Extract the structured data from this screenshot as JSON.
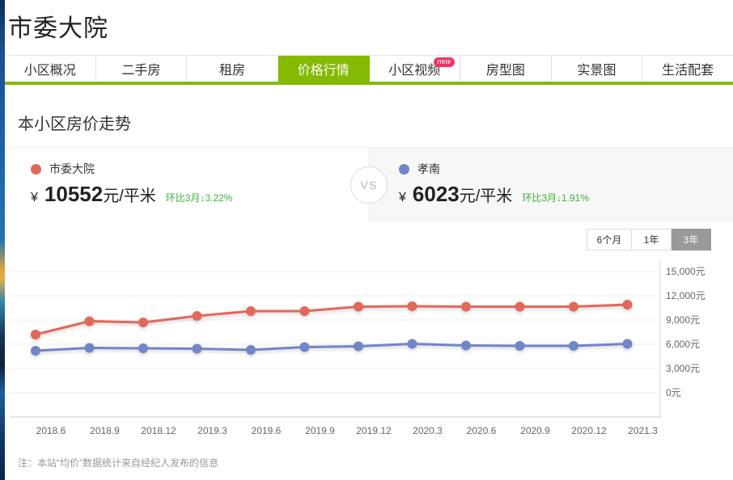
{
  "page": {
    "title": "市委大院"
  },
  "tabs": [
    {
      "label": "小区概况",
      "active": false
    },
    {
      "label": "二手房",
      "active": false
    },
    {
      "label": "租房",
      "active": false
    },
    {
      "label": "价格行情",
      "active": true
    },
    {
      "label": "小区视频",
      "active": false,
      "badge": "new"
    },
    {
      "label": "房型图",
      "active": false
    },
    {
      "label": "实景图",
      "active": false
    },
    {
      "label": "生活配套",
      "active": false
    }
  ],
  "section": {
    "title": "本小区房价走势"
  },
  "compare": {
    "vs_label": "VS",
    "left": {
      "name": "市委大院",
      "currency": "¥",
      "price": "10552",
      "unit": "元/平米",
      "mom": "环比3月↓3.22%",
      "color": "#e2695a"
    },
    "right": {
      "name": "孝南",
      "currency": "¥",
      "price": "6023",
      "unit": "元/平米",
      "mom": "环比3月↓1.91%",
      "color": "#7086c7"
    }
  },
  "range_buttons": [
    {
      "label": "6个月",
      "active": false
    },
    {
      "label": "1年",
      "active": false
    },
    {
      "label": "3年",
      "active": true
    }
  ],
  "chart_data": {
    "type": "line",
    "categories": [
      "2018.6",
      "2018.9",
      "2018.12",
      "2019.3",
      "2019.6",
      "2019.9",
      "2019.12",
      "2020.3",
      "2020.6",
      "2020.9",
      "2020.12",
      "2021.3"
    ],
    "series": [
      {
        "name": "市委大院",
        "color": "#e2695a",
        "values": [
          7200,
          8850,
          8700,
          9500,
          10100,
          10100,
          10650,
          10700,
          10650,
          10650,
          10650,
          10900
        ]
      },
      {
        "name": "孝南",
        "color": "#7086c7",
        "values": [
          5200,
          5550,
          5500,
          5450,
          5300,
          5650,
          5750,
          6050,
          5850,
          5800,
          5800,
          6050
        ]
      }
    ],
    "title": "",
    "xlabel": "",
    "ylabel": "",
    "ylim": [
      0,
      15000
    ],
    "ytick_interval": 3000,
    "ytick_labels": [
      "15,000元",
      "12,000元",
      "9,000元",
      "6,000元",
      "3,000元",
      "0元"
    ],
    "grid": true,
    "yaxis_position": "right",
    "legend_position": "none"
  },
  "note": "注：本站“均价”数据统计来自经纪人发布的信息",
  "colors": {
    "accent_green": "#84ba01",
    "mom_green": "#3eb135",
    "badge_pink": "#ef3265",
    "series_red": "#e2695a",
    "series_blue": "#7086c7",
    "range_active_bg": "#999999"
  }
}
